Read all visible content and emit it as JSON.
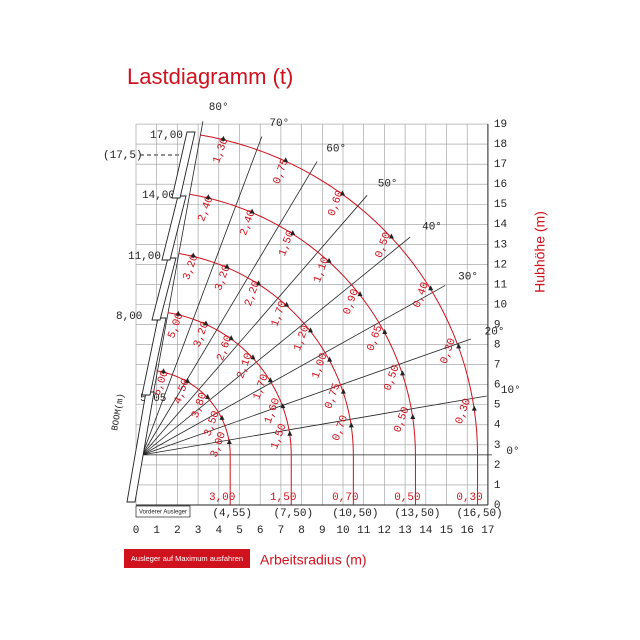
{
  "title": "Lastdiagramm (t)",
  "y_axis": {
    "label": "Hubhöhe (m)",
    "ticks": [
      0,
      1,
      2,
      3,
      4,
      5,
      6,
      7,
      8,
      9,
      10,
      11,
      12,
      13,
      14,
      15,
      16,
      17,
      18,
      19
    ]
  },
  "x_axis": {
    "label": "Arbeitsradius (m)",
    "ticks": [
      0,
      1,
      2,
      3,
      4,
      5,
      6,
      7,
      8,
      9,
      10,
      11,
      12,
      13,
      14,
      15,
      16,
      17
    ]
  },
  "button": "Ausleger auf Maximum ausfahren",
  "boom_label": "BOOM(m)",
  "fly_jib_label": "Vorderer Ausleger",
  "extra_length": "(17,5)",
  "angles": [
    "0°",
    "10°",
    "20°",
    "30°",
    "40°",
    "50°",
    "60°",
    "70°",
    "80°"
  ],
  "booms": [
    {
      "length": "5,05",
      "max_radius": "(4,55)",
      "loads": [
        "5,00",
        "4,50",
        "3,80",
        "3,50",
        "3,00",
        "3,00"
      ]
    },
    {
      "length": "8,00",
      "max_radius": "(7,50)",
      "loads": [
        "5,00",
        "3,20",
        "2,60",
        "2,10",
        "1,70",
        "1,60",
        "1,50",
        "1,50"
      ]
    },
    {
      "length": "11,00",
      "max_radius": "(10,50)",
      "loads": [
        "3,20",
        "3,20",
        "2,20",
        "1,70",
        "1,20",
        "1,00",
        "0,75",
        "0,70",
        "0,70"
      ]
    },
    {
      "length": "14,00",
      "max_radius": "(13,50)",
      "loads": [
        "2,40",
        "2,40",
        "1,50",
        "1,10",
        "0,90",
        "0,65",
        "0,50",
        "0,50",
        "0,50"
      ]
    },
    {
      "length": "17,00",
      "max_radius": "(16,50)",
      "loads": [
        "1,30",
        "0,75",
        "0,60",
        "0,50",
        "0,40",
        "0,30",
        "0,30",
        "0,30"
      ]
    }
  ]
}
